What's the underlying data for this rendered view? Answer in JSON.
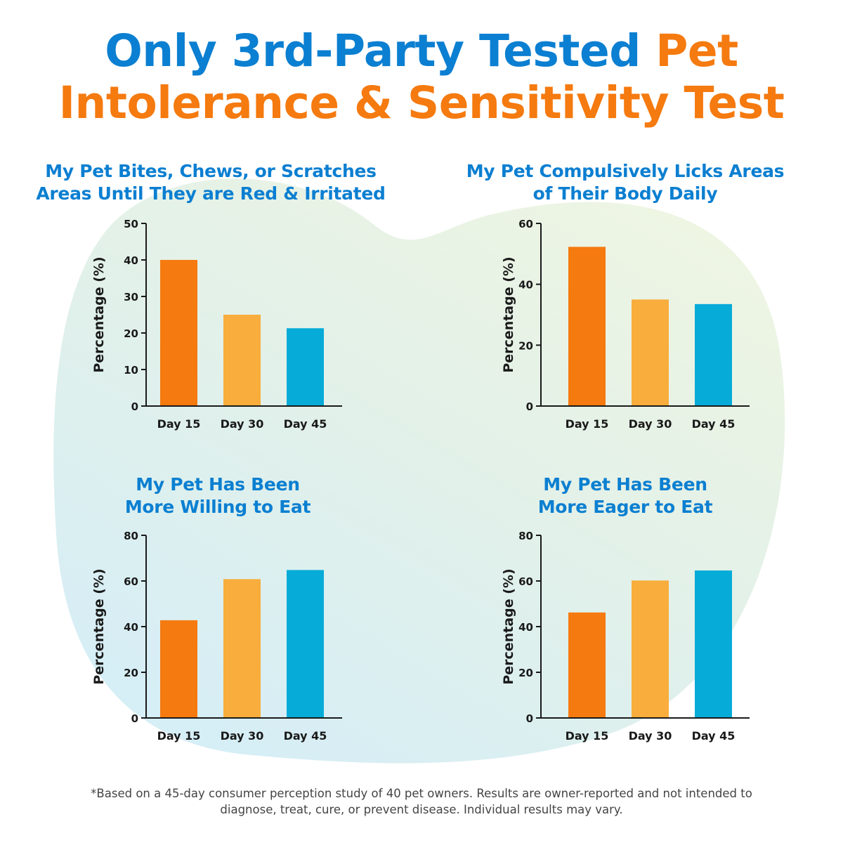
{
  "headline": {
    "line1_blue": "Only 3rd-Party Tested ",
    "line1_orange": "Pet",
    "line2_orange": "Intolerance & Sensitivity Test"
  },
  "colors": {
    "heading_blue": "#0b7fd1",
    "heading_orange": "#f57a0f",
    "bar_day15": "#f57a0f",
    "bar_day30": "#f8ad3c",
    "bar_day45": "#07abd8",
    "axis": "#1a1a1a"
  },
  "chart_data": [
    {
      "type": "bar",
      "title_lines": [
        "My Pet Bites, Chews, or Scratches",
        "Areas Until They are Red & Irritated"
      ],
      "categories": [
        "Day 15",
        "Day 30",
        "Day 45"
      ],
      "values": [
        40,
        25,
        21.3
      ],
      "ylabel": "Percentage (%)",
      "ylim": [
        0,
        50
      ],
      "yticks": [
        0,
        10,
        20,
        30,
        40,
        50
      ],
      "grid": false
    },
    {
      "type": "bar",
      "title_lines": [
        "My Pet Compulsively Licks Areas",
        "of Their Body Daily"
      ],
      "categories": [
        "Day 15",
        "Day 30",
        "Day 45"
      ],
      "values": [
        52.3,
        35,
        33.5
      ],
      "ylabel": "Percentage (%)",
      "ylim": [
        0,
        60
      ],
      "yticks": [
        0,
        20,
        40,
        60
      ],
      "grid": false
    },
    {
      "type": "bar",
      "title_lines": [
        "My Pet Has Been",
        "More Willing to Eat"
      ],
      "categories": [
        "Day 15",
        "Day 30",
        "Day 45"
      ],
      "values": [
        42.8,
        60.8,
        64.8
      ],
      "ylabel": "Percentage (%)",
      "ylim": [
        0,
        80
      ],
      "yticks": [
        0,
        20,
        40,
        60,
        80
      ],
      "grid": false
    },
    {
      "type": "bar",
      "title_lines": [
        "My Pet Has Been",
        "More Eager to Eat"
      ],
      "categories": [
        "Day 15",
        "Day 30",
        "Day 45"
      ],
      "values": [
        46.2,
        60.2,
        64.6
      ],
      "ylabel": "Percentage (%)",
      "ylim": [
        0,
        80
      ],
      "yticks": [
        0,
        20,
        40,
        60,
        80
      ],
      "grid": false
    }
  ],
  "footnote": {
    "line1": "*Based on a 45-day consumer perception study of 40 pet owners. Results are owner-reported and not intended to",
    "line2": "diagnose, treat, cure, or prevent disease. Individual results may vary."
  }
}
